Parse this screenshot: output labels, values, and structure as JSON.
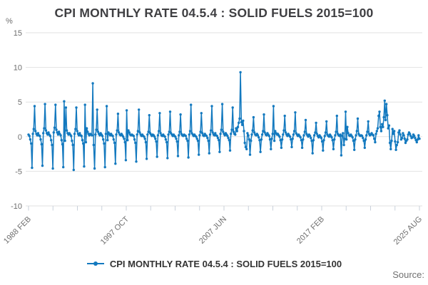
{
  "header": {
    "title": "CPI MONTHLY RATE 04.5.4 : SOLID FUELS 2015=100"
  },
  "legend": {
    "label": "CPI MONTHLY RATE 04.5.4 : SOLID FUELS 2015=100",
    "marker": "line-with-dot"
  },
  "source": {
    "text": "Source:"
  },
  "axes": {
    "y_unit": "%",
    "y_ticks": [
      15,
      10,
      5,
      0,
      -5,
      -10
    ],
    "x_tick_labels": [
      "1988 FEB",
      "1997 OCT",
      "2007 JUN",
      "2017 FEB",
      "2025 AUG"
    ]
  },
  "colors": {
    "line": "#1379bf",
    "grid": "#e2e2e2",
    "tick": "#c9d0da",
    "axis_text": "#6e6e6e",
    "title_text": "#3f3f42"
  },
  "chart_data": {
    "type": "line",
    "title": "CPI MONTHLY RATE 04.5.4 : SOLID FUELS 2015=100",
    "ylabel": "%",
    "ylim": [
      -10,
      15
    ],
    "yticks": [
      -10,
      -5,
      0,
      5,
      10,
      15
    ],
    "grid": true,
    "legend_position": "bottom",
    "frequency": "monthly",
    "start": "1988 FEB",
    "end": "2025 AUG",
    "xtick_labels": [
      "1988 FEB",
      "1997 OCT",
      "2007 JUN",
      "2017 FEB",
      "2025 AUG"
    ],
    "series_name": "CPI MONTHLY RATE 04.5.4 : SOLID FUELS 2015=100",
    "series_color": "#1379bf",
    "values_by_year": {
      "1988": [
        0.3,
        0.1,
        -0.4,
        -1.0,
        -4.5,
        0.4,
        1.1,
        4.4,
        0.8,
        0.4,
        0.2
      ],
      "1989": [
        0.5,
        0.2,
        0.1,
        -0.4,
        -1.1,
        -4.2,
        0.5,
        1.2,
        4.7,
        0.9,
        0.5,
        0.3
      ],
      "1990": [
        0.6,
        0.3,
        0.1,
        -0.5,
        -1.2,
        -4.6,
        0.6,
        1.3,
        4.6,
        1.0,
        0.6,
        0.3
      ],
      "1991": [
        0.7,
        0.4,
        0.2,
        -0.5,
        -1.1,
        -4.4,
        5.1,
        -0.6,
        4.2,
        0.9,
        0.5,
        0.3
      ],
      "1992": [
        0.5,
        0.3,
        0.1,
        -0.6,
        -1.2,
        -4.8,
        0.4,
        1.1,
        4.2,
        0.8,
        0.4,
        0.2
      ],
      "1993": [
        0.5,
        0.2,
        0.1,
        -0.5,
        -1.0,
        -4.3,
        4.6,
        -0.8,
        1.2,
        0.7,
        0.4,
        0.2
      ],
      "1994": [
        0.4,
        0.3,
        0.2,
        7.7,
        -1.2,
        -4.6,
        0.3,
        1.0,
        3.9,
        0.7,
        0.4,
        0.2
      ],
      "1995": [
        0.5,
        0.3,
        0.1,
        -0.4,
        -1.0,
        -4.4,
        0.4,
        4.4,
        -0.5,
        0.6,
        0.4,
        0.2
      ],
      "1996": [
        0.4,
        0.2,
        0.1,
        -0.4,
        -0.9,
        -3.9,
        0.3,
        0.9,
        3.3,
        0.6,
        0.3,
        0.2
      ],
      "1997": [
        0.4,
        0.2,
        0.0,
        -0.3,
        -0.8,
        -3.4,
        3.8,
        -0.5,
        0.9,
        0.6,
        0.3,
        0.2
      ],
      "1998": [
        0.3,
        0.2,
        0.1,
        -0.4,
        -0.9,
        -3.6,
        0.3,
        0.8,
        3.9,
        0.6,
        0.3,
        0.1
      ],
      "1999": [
        0.3,
        0.1,
        0.0,
        -0.3,
        -0.8,
        -3.2,
        0.3,
        0.7,
        3.1,
        0.5,
        0.3,
        0.1
      ],
      "2000": [
        0.3,
        0.2,
        0.0,
        -0.3,
        -0.7,
        -2.9,
        0.2,
        0.8,
        3.4,
        0.5,
        0.2,
        0.1
      ],
      "2001": [
        0.3,
        0.1,
        0.0,
        -0.4,
        -0.8,
        -3.1,
        0.3,
        0.7,
        3.6,
        0.5,
        0.3,
        0.1
      ],
      "2002": [
        0.3,
        0.1,
        0.0,
        -0.3,
        -0.7,
        -2.8,
        0.2,
        0.7,
        3.2,
        0.4,
        0.2,
        0.1
      ],
      "2003": [
        0.3,
        0.2,
        0.1,
        -0.3,
        -0.6,
        -3.0,
        0.3,
        0.8,
        4.6,
        0.5,
        0.3,
        0.1
      ],
      "2004": [
        0.3,
        0.1,
        0.0,
        -0.3,
        -0.6,
        -2.6,
        0.2,
        0.7,
        3.4,
        0.5,
        0.2,
        0.1
      ],
      "2005": [
        0.4,
        0.2,
        0.1,
        -0.2,
        -0.6,
        -2.4,
        0.3,
        0.9,
        4.4,
        0.6,
        0.3,
        0.2
      ],
      "2006": [
        0.5,
        0.2,
        0.1,
        -0.2,
        -0.5,
        -2.2,
        0.4,
        1.0,
        4.7,
        0.7,
        0.4,
        0.2
      ],
      "2007": [
        0.5,
        0.3,
        0.1,
        -0.2,
        -0.5,
        -2.0,
        0.4,
        1.0,
        4.2,
        0.7,
        0.4,
        0.3
      ],
      "2008": [
        1.2,
        0.8,
        1.4,
        2.0,
        2.6,
        9.3,
        2.1,
        1.7,
        2.3,
        0.8,
        -0.9,
        -1.5
      ],
      "2009": [
        -1.8,
        0.5,
        0.2,
        -0.4,
        -2.6,
        -0.6,
        0.3,
        0.9,
        2.8,
        0.6,
        0.3,
        0.2
      ],
      "2010": [
        0.4,
        0.2,
        -0.1,
        -0.5,
        -2.2,
        -0.4,
        0.3,
        0.8,
        3.2,
        0.6,
        0.3,
        0.2
      ],
      "2011": [
        0.5,
        0.3,
        0.1,
        -0.4,
        -1.8,
        -0.3,
        0.4,
        4.4,
        -0.6,
        0.8,
        0.5,
        0.3
      ],
      "2012": [
        0.4,
        0.2,
        0.0,
        -0.5,
        -1.6,
        -0.4,
        0.3,
        0.9,
        3.0,
        0.6,
        0.3,
        0.1
      ],
      "2013": [
        0.4,
        0.2,
        0.0,
        -0.4,
        -1.5,
        -0.3,
        0.3,
        0.8,
        3.5,
        0.5,
        0.3,
        0.1
      ],
      "2014": [
        0.3,
        0.1,
        -0.1,
        -0.5,
        -1.6,
        -0.4,
        0.2,
        0.7,
        2.4,
        0.4,
        0.2,
        0.0
      ],
      "2015": [
        0.3,
        0.1,
        -0.2,
        -0.6,
        -2.4,
        -0.5,
        0.2,
        0.6,
        2.0,
        0.4,
        0.1,
        -0.1
      ],
      "2016": [
        0.2,
        0.0,
        -0.2,
        -0.7,
        -2.0,
        -0.5,
        0.1,
        0.6,
        2.2,
        0.3,
        0.1,
        0.0
      ],
      "2017": [
        0.3,
        0.1,
        -0.1,
        -0.5,
        -1.8,
        -0.4,
        0.2,
        0.7,
        3.0,
        0.4,
        0.2,
        0.1
      ],
      "2018": [
        0.3,
        -2.7,
        0.1,
        0.5,
        -1.2,
        -0.3,
        3.6,
        -0.4,
        1.4,
        0.5,
        0.2,
        0.1
      ],
      "2019": [
        0.3,
        0.1,
        -0.1,
        -0.6,
        -1.9,
        -0.4,
        0.2,
        0.8,
        2.6,
        0.4,
        0.2,
        0.1
      ],
      "2020": [
        0.2,
        0.1,
        -0.2,
        -0.6,
        -1.6,
        -0.4,
        0.2,
        0.7,
        2.2,
        0.4,
        0.2,
        0.3
      ],
      "2021": [
        0.5,
        0.3,
        0.2,
        -0.3,
        -0.8,
        0.4,
        0.8,
        1.2,
        3.0,
        3.6,
        1.4,
        0.8
      ],
      "2022": [
        1.8,
        1.4,
        2.8,
        5.2,
        2.4,
        4.7,
        3.1,
        1.2,
        1.6,
        -0.9,
        -1.8,
        -0.6
      ],
      "2023": [
        1.1,
        0.4,
        0.8,
        -0.7,
        -1.9,
        -1.2,
        -0.8,
        0.6,
        0.9,
        0.3,
        -0.4,
        -0.2
      ],
      "2024": [
        0.5,
        0.2,
        -0.3,
        -0.9,
        -0.6,
        -0.4,
        0.3,
        0.6,
        0.4,
        0.1,
        -0.2,
        -0.1
      ],
      "2025": [
        0.3,
        0.1,
        -0.2,
        -0.5,
        -0.8,
        -0.4,
        0.2,
        -0.3
      ]
    }
  }
}
